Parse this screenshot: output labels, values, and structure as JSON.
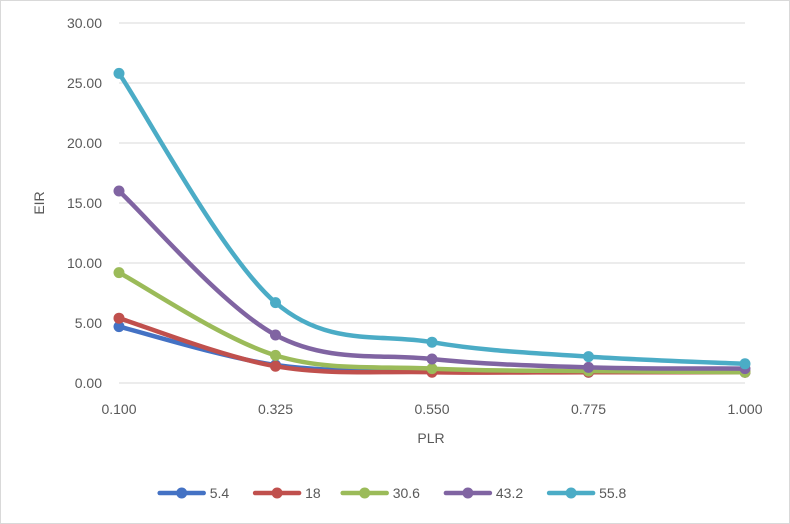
{
  "chart_data": {
    "type": "line",
    "title": "",
    "xlabel": "PLR",
    "ylabel": "EIR",
    "x": [
      0.1,
      0.325,
      0.55,
      0.775,
      1.0
    ],
    "x_tick_labels": [
      "0.100",
      "0.325",
      "0.550",
      "0.775",
      "1.000"
    ],
    "y_tick_labels": [
      "0.00",
      "5.00",
      "10.00",
      "15.00",
      "20.00",
      "25.00",
      "30.00"
    ],
    "ylim": [
      0,
      30
    ],
    "grid": "horizontal",
    "legend_position": "bottom",
    "smooth": true,
    "series": [
      {
        "name": "5.4",
        "color": "#4472c4",
        "values": [
          4.7,
          1.5,
          1.0,
          0.9,
          0.9
        ]
      },
      {
        "name": "18",
        "color": "#c0504d",
        "values": [
          5.4,
          1.4,
          0.9,
          0.9,
          0.9
        ]
      },
      {
        "name": "30.6",
        "color": "#9bbb59",
        "values": [
          9.2,
          2.3,
          1.2,
          1.0,
          0.9
        ]
      },
      {
        "name": "43.2",
        "color": "#8064a2",
        "values": [
          16.0,
          4.0,
          2.0,
          1.3,
          1.2
        ]
      },
      {
        "name": "55.8",
        "color": "#4bacc6",
        "values": [
          25.8,
          6.7,
          3.4,
          2.2,
          1.6
        ]
      }
    ]
  }
}
